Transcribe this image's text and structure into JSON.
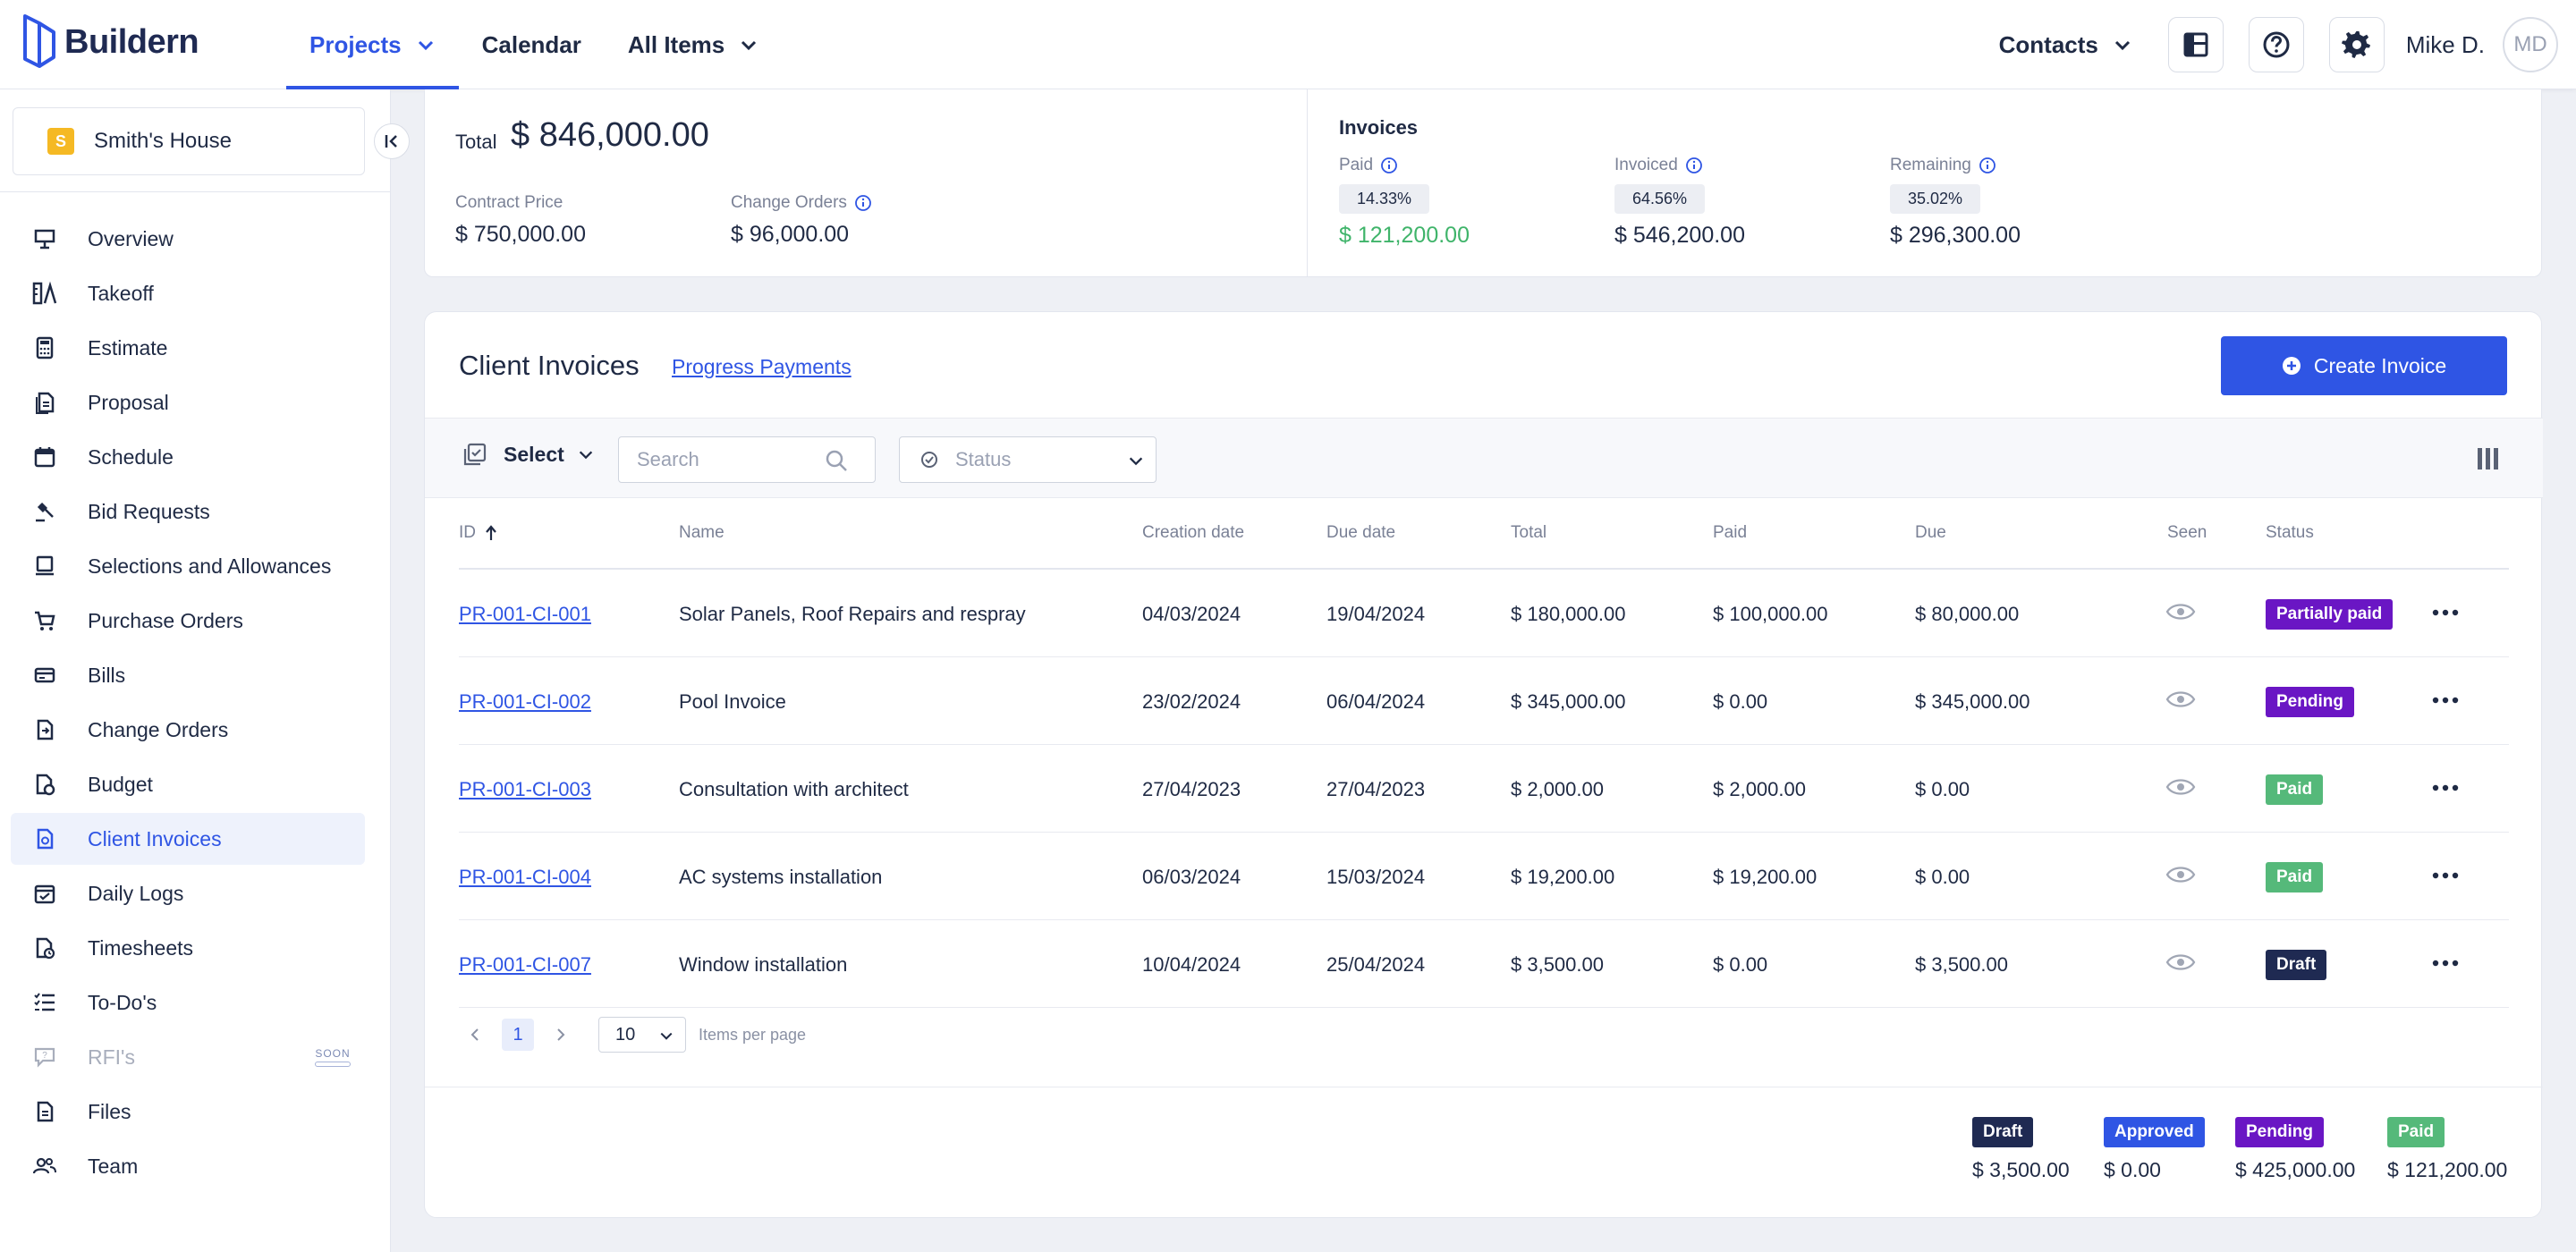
{
  "app": {
    "name": "Buildern"
  },
  "topnav": {
    "items": [
      {
        "label": "Projects",
        "active": true,
        "dropdown": true
      },
      {
        "label": "Calendar",
        "active": false,
        "dropdown": false
      },
      {
        "label": "All Items",
        "active": false,
        "dropdown": true
      }
    ],
    "contacts_label": "Contacts",
    "user_name": "Mike D.",
    "user_initials": "MD"
  },
  "sidebar": {
    "project_initial": "S",
    "project_name": "Smith's House",
    "items": [
      {
        "label": "Overview",
        "icon": "presentation-icon"
      },
      {
        "label": "Takeoff",
        "icon": "ruler-icon"
      },
      {
        "label": "Estimate",
        "icon": "calculator-icon"
      },
      {
        "label": "Proposal",
        "icon": "document-icon"
      },
      {
        "label": "Schedule",
        "icon": "calendar-icon"
      },
      {
        "label": "Bid Requests",
        "icon": "gavel-icon"
      },
      {
        "label": "Selections and Allowances",
        "icon": "monitor-icon"
      },
      {
        "label": "Purchase Orders",
        "icon": "cart-icon"
      },
      {
        "label": "Bills",
        "icon": "bill-icon"
      },
      {
        "label": "Change Orders",
        "icon": "change-icon"
      },
      {
        "label": "Budget",
        "icon": "budget-icon"
      },
      {
        "label": "Client Invoices",
        "icon": "invoice-icon",
        "active": true
      },
      {
        "label": "Daily Logs",
        "icon": "calendar-check-icon"
      },
      {
        "label": "Timesheets",
        "icon": "timesheet-icon"
      },
      {
        "label": "To-Do's",
        "icon": "checklist-icon"
      },
      {
        "label": "RFI's",
        "icon": "chat-question-icon",
        "disabled": true,
        "badge": "SOON"
      },
      {
        "label": "Files",
        "icon": "file-icon"
      },
      {
        "label": "Team",
        "icon": "team-icon"
      }
    ]
  },
  "summary": {
    "total_label": "Total",
    "total_value": "$ 846,000.00",
    "contract_label": "Contract Price",
    "contract_value": "$ 750,000.00",
    "change_label": "Change Orders",
    "change_value": "$ 96,000.00",
    "invoices_title": "Invoices",
    "paid_label": "Paid",
    "paid_pct": "14.33%",
    "paid_value": "$ 121,200.00",
    "invoiced_label": "Invoiced",
    "invoiced_pct": "64.56%",
    "invoiced_value": "$ 546,200.00",
    "remaining_label": "Remaining",
    "remaining_pct": "35.02%",
    "remaining_value": "$ 296,300.00"
  },
  "invoices": {
    "title": "Client Invoices",
    "link": "Progress Payments",
    "create_label": "Create Invoice",
    "select_label": "Select",
    "search_placeholder": "Search",
    "status_placeholder": "Status",
    "columns": {
      "id": "ID",
      "name": "Name",
      "created": "Creation date",
      "due": "Due date",
      "total": "Total",
      "paid": "Paid",
      "due_amount": "Due",
      "seen": "Seen",
      "status": "Status"
    },
    "rows": [
      {
        "id": "PR-001-CI-001",
        "name": "Solar Panels, Roof Repairs and respray",
        "created": "04/03/2024",
        "due": "19/04/2024",
        "total": "$ 180,000.00",
        "paid": "$ 100,000.00",
        "due_amount": "$ 80,000.00",
        "status": "Partially paid",
        "status_color": "#6a16c4"
      },
      {
        "id": "PR-001-CI-002",
        "name": "Pool Invoice",
        "created": "23/02/2024",
        "due": "06/04/2024",
        "total": "$ 345,000.00",
        "paid": "$ 0.00",
        "due_amount": "$ 345,000.00",
        "status": "Pending",
        "status_color": "#6a16c4"
      },
      {
        "id": "PR-001-CI-003",
        "name": "Consultation with architect",
        "created": "27/04/2023",
        "due": "27/04/2023",
        "total": "$ 2,000.00",
        "paid": "$ 2,000.00",
        "due_amount": "$ 0.00",
        "status": "Paid",
        "status_color": "#55b97a"
      },
      {
        "id": "PR-001-CI-004",
        "name": "AC systems installation",
        "created": "06/03/2024",
        "due": "15/03/2024",
        "total": "$ 19,200.00",
        "paid": "$ 19,200.00",
        "due_amount": "$ 0.00",
        "status": "Paid",
        "status_color": "#55b97a"
      },
      {
        "id": "PR-001-CI-007",
        "name": "Window installation",
        "created": "10/04/2024",
        "due": "25/04/2024",
        "total": "$ 3,500.00",
        "paid": "$ 0.00",
        "due_amount": "$ 3,500.00",
        "status": "Draft",
        "status_color": "#1f2a52"
      }
    ],
    "pagination": {
      "current_page": "1",
      "page_size": "10",
      "items_per_page_label": "Items per page"
    },
    "legend": [
      {
        "label": "Draft",
        "value": "$ 3,500.00",
        "color": "#1f2a52"
      },
      {
        "label": "Approved",
        "value": "$ 0.00",
        "color": "#2f55e4"
      },
      {
        "label": "Pending",
        "value": "$ 425,000.00",
        "color": "#6a16c4"
      },
      {
        "label": "Paid",
        "value": "$ 121,200.00",
        "color": "#55b97a"
      }
    ]
  },
  "colors": {
    "accent": "#2f55e4",
    "paid_green": "#3fb46a"
  }
}
